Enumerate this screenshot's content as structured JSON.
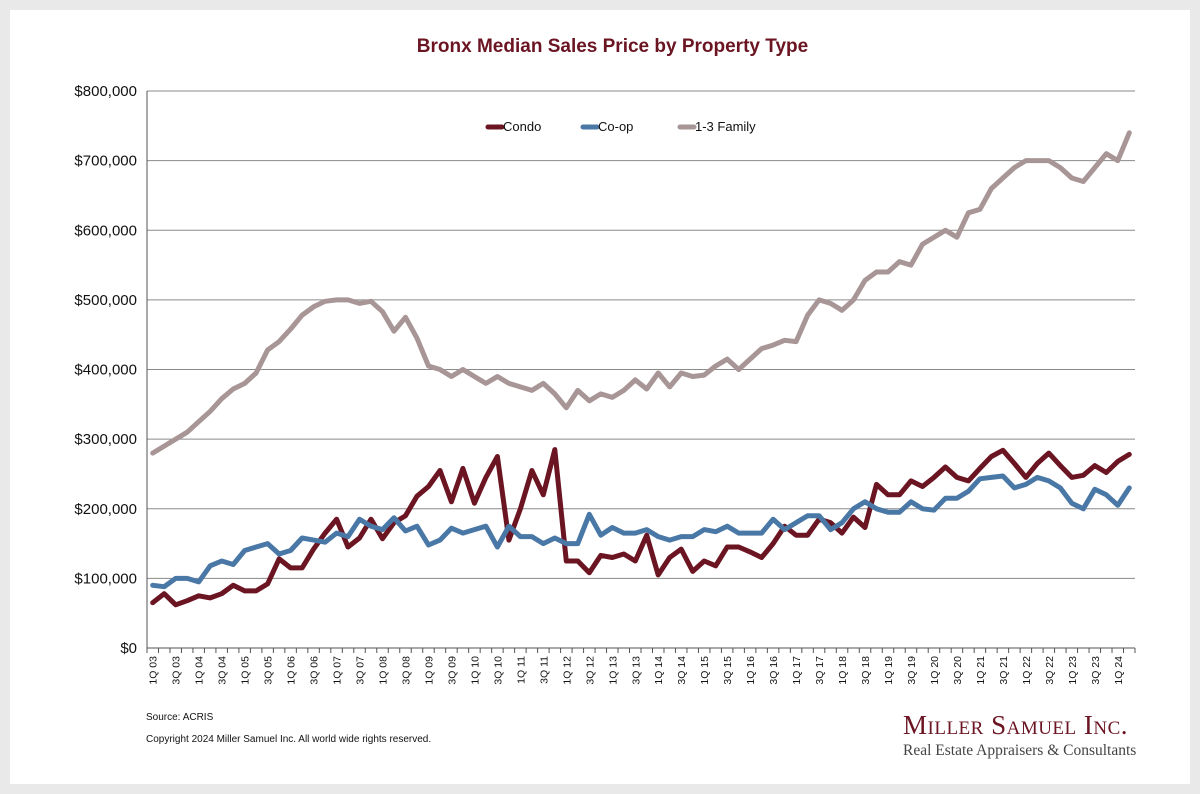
{
  "chart_data": {
    "type": "line",
    "title": "Bronx Median Sales Price by Property Type",
    "xlabel": "",
    "ylabel": "",
    "ylim": [
      0,
      800000
    ],
    "yticks": [
      0,
      100000,
      200000,
      300000,
      400000,
      500000,
      600000,
      700000,
      800000
    ],
    "ytick_labels": [
      "$0",
      "$100,000",
      "$200,000",
      "$300,000",
      "$400,000",
      "$500,000",
      "$600,000",
      "$700,000",
      "$800,000"
    ],
    "grid": true,
    "legend_placement": "top-center",
    "categories": [
      "1Q 03",
      "2Q 03",
      "3Q 03",
      "4Q 03",
      "1Q 04",
      "2Q 04",
      "3Q 04",
      "4Q 04",
      "1Q 05",
      "2Q 05",
      "3Q 05",
      "4Q 05",
      "1Q 06",
      "2Q 06",
      "3Q 06",
      "4Q 06",
      "1Q 07",
      "2Q 07",
      "3Q 07",
      "4Q 07",
      "1Q 08",
      "2Q 08",
      "3Q 08",
      "4Q 08",
      "1Q 09",
      "2Q 09",
      "3Q 09",
      "4Q 09",
      "1Q 10",
      "2Q 10",
      "3Q 10",
      "4Q 10",
      "1Q 11",
      "2Q 11",
      "3Q 11",
      "4Q 11",
      "1Q 12",
      "2Q 12",
      "3Q 12",
      "4Q 12",
      "1Q 13",
      "2Q 13",
      "3Q 13",
      "4Q 13",
      "1Q 14",
      "2Q 14",
      "3Q 14",
      "4Q 14",
      "1Q 15",
      "2Q 15",
      "3Q 15",
      "4Q 15",
      "1Q 16",
      "2Q 16",
      "3Q 16",
      "4Q 16",
      "1Q 17",
      "2Q 17",
      "3Q 17",
      "4Q 17",
      "1Q 18",
      "2Q 18",
      "3Q 18",
      "4Q 18",
      "1Q 19",
      "2Q 19",
      "3Q 19",
      "4Q 19",
      "1Q 20",
      "2Q 20",
      "3Q 20",
      "4Q 20",
      "1Q 21",
      "2Q 21",
      "3Q 21",
      "4Q 21",
      "1Q 22",
      "2Q 22",
      "3Q 22",
      "4Q 22",
      "1Q 23",
      "2Q 23",
      "3Q 23",
      "4Q 23",
      "1Q 24",
      "2Q 24"
    ],
    "visible_tick_labels": [
      "1Q 03",
      "3Q 03",
      "1Q 04",
      "3Q 04",
      "1Q 05",
      "3Q 05",
      "1Q 06",
      "3Q 06",
      "1Q 07",
      "3Q 07",
      "1Q 08",
      "3Q 08",
      "1Q 09",
      "3Q 09",
      "1Q 10",
      "3Q 10",
      "1Q 11",
      "3Q 11",
      "1Q 12",
      "3Q 12",
      "1Q 13",
      "3Q 13",
      "1Q 14",
      "3Q 14",
      "1Q 15",
      "3Q 15",
      "1Q 16",
      "3Q 16",
      "1Q 17",
      "3Q 17",
      "1Q 18",
      "3Q 18",
      "1Q 19",
      "3Q 19",
      "1Q 20",
      "3Q 20",
      "1Q 21",
      "3Q 21",
      "1Q 22",
      "3Q 22",
      "1Q 23",
      "3Q 23",
      "1Q 24"
    ],
    "series": [
      {
        "name": "Condo",
        "color": "#6b1422",
        "values": [
          65000,
          78000,
          62000,
          68000,
          75000,
          72000,
          78000,
          90000,
          82000,
          82000,
          92000,
          128000,
          115000,
          115000,
          142000,
          165000,
          185000,
          145000,
          158000,
          185000,
          157000,
          180000,
          190000,
          218000,
          232000,
          255000,
          210000,
          258000,
          208000,
          245000,
          275000,
          155000,
          200000,
          255000,
          220000,
          285000,
          125000,
          125000,
          108000,
          133000,
          130000,
          135000,
          125000,
          162000,
          105000,
          130000,
          142000,
          110000,
          125000,
          118000,
          145000,
          145000,
          138000,
          130000,
          150000,
          175000,
          162000,
          162000,
          185000,
          180000,
          165000,
          188000,
          173000,
          235000,
          220000,
          220000,
          240000,
          232000,
          245000,
          260000,
          245000,
          240000,
          258000,
          275000,
          284000,
          265000,
          245000,
          265000,
          280000,
          262000,
          245000,
          248000,
          262000,
          252000,
          268000,
          278000
        ]
      },
      {
        "name": "Co-op",
        "color": "#4a78a6",
        "values": [
          90000,
          88000,
          100000,
          100000,
          95000,
          118000,
          125000,
          120000,
          140000,
          145000,
          150000,
          135000,
          140000,
          158000,
          155000,
          152000,
          165000,
          160000,
          185000,
          175000,
          170000,
          187000,
          168000,
          175000,
          148000,
          155000,
          172000,
          165000,
          170000,
          175000,
          145000,
          175000,
          160000,
          160000,
          150000,
          158000,
          150000,
          150000,
          192000,
          162000,
          173000,
          165000,
          165000,
          170000,
          160000,
          155000,
          160000,
          160000,
          170000,
          167000,
          175000,
          165000,
          165000,
          165000,
          185000,
          170000,
          180000,
          190000,
          190000,
          170000,
          180000,
          200000,
          210000,
          200000,
          195000,
          195000,
          210000,
          200000,
          198000,
          215000,
          215000,
          225000,
          243000,
          245000,
          247000,
          230000,
          235000,
          245000,
          240000,
          230000,
          208000,
          200000,
          228000,
          220000,
          205000,
          230000
        ]
      },
      {
        "name": "1-3 Family",
        "color": "#a89596",
        "values": [
          280000,
          290000,
          300000,
          310000,
          325000,
          340000,
          358000,
          372000,
          380000,
          395000,
          428000,
          440000,
          458000,
          478000,
          490000,
          498000,
          500000,
          500000,
          495000,
          498000,
          483000,
          455000,
          475000,
          445000,
          405000,
          400000,
          390000,
          400000,
          390000,
          380000,
          390000,
          380000,
          375000,
          370000,
          380000,
          365000,
          345000,
          370000,
          355000,
          365000,
          360000,
          370000,
          385000,
          372000,
          395000,
          375000,
          395000,
          390000,
          392000,
          405000,
          415000,
          400000,
          415000,
          430000,
          435000,
          442000,
          440000,
          478000,
          500000,
          495000,
          485000,
          500000,
          528000,
          540000,
          540000,
          555000,
          550000,
          580000,
          590000,
          600000,
          590000,
          625000,
          630000,
          660000,
          675000,
          690000,
          700000,
          700000,
          700000,
          690000,
          675000,
          670000,
          690000,
          710000,
          700000,
          740000
        ]
      }
    ]
  },
  "footer": {
    "source": "Source: ACRIS",
    "copyright": "Copyright 2024 Miller Samuel Inc.  All world wide rights reserved."
  },
  "logo": {
    "name": "Miller Samuel Inc.",
    "tagline": "Real Estate Appraisers & Consultants"
  }
}
